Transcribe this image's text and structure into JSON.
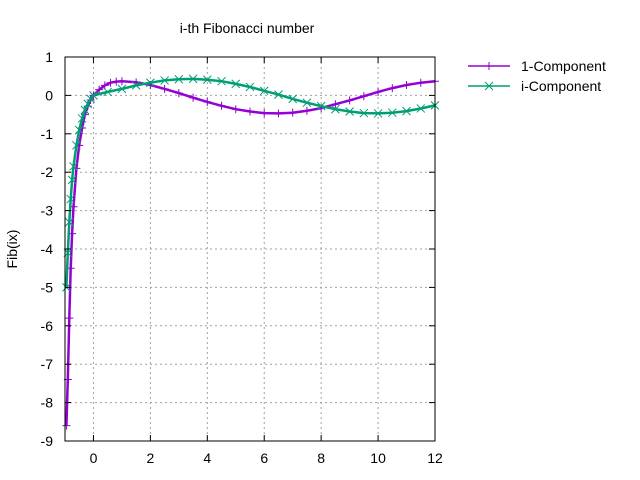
{
  "chart_data": {
    "type": "line",
    "title": "i-th Fibonacci number",
    "xlabel": "",
    "ylabel": "Fib(ix)",
    "xlim": [
      -1,
      12
    ],
    "ylim": [
      -9,
      1
    ],
    "xticks": [
      0,
      2,
      4,
      6,
      8,
      10,
      12
    ],
    "yticks": [
      1,
      0,
      -1,
      -2,
      -3,
      -4,
      -5,
      -6,
      -7,
      -8,
      -9
    ],
    "grid": true,
    "legend_position": "outside-right-top",
    "series": [
      {
        "name": "1-Component",
        "color": "#9400d3",
        "marker": "plus",
        "x": [
          -0.95,
          -0.9,
          -0.85,
          -0.8,
          -0.75,
          -0.7,
          -0.6,
          -0.5,
          -0.4,
          -0.3,
          -0.2,
          -0.1,
          0,
          0.2,
          0.4,
          0.6,
          0.8,
          1,
          1.5,
          2,
          2.5,
          3,
          3.5,
          4,
          4.5,
          5,
          5.5,
          6,
          6.5,
          7,
          7.5,
          8,
          8.5,
          9,
          9.5,
          10,
          10.5,
          11,
          11.5,
          12
        ],
        "values": [
          -8.6,
          -7.4,
          -5.8,
          -4.5,
          -3.6,
          -2.9,
          -1.9,
          -1.3,
          -0.85,
          -0.5,
          -0.28,
          -0.12,
          0,
          0.15,
          0.26,
          0.33,
          0.36,
          0.37,
          0.34,
          0.27,
          0.17,
          0.06,
          -0.06,
          -0.17,
          -0.27,
          -0.36,
          -0.42,
          -0.46,
          -0.47,
          -0.45,
          -0.4,
          -0.33,
          -0.23,
          -0.13,
          -0.02,
          0.09,
          0.19,
          0.27,
          0.33,
          0.37
        ]
      },
      {
        "name": "i-Component",
        "color": "#009e73",
        "marker": "cross",
        "x": [
          -0.95,
          -0.9,
          -0.85,
          -0.8,
          -0.75,
          -0.7,
          -0.6,
          -0.5,
          -0.4,
          -0.3,
          -0.2,
          -0.1,
          0,
          0.5,
          1,
          1.5,
          2,
          2.5,
          3,
          3.5,
          4,
          4.5,
          5,
          5.5,
          6,
          6.5,
          7,
          7.5,
          8,
          8.5,
          9,
          9.5,
          10,
          10.5,
          11,
          11.5,
          12
        ],
        "values": [
          -5.0,
          -4.1,
          -3.3,
          -2.7,
          -2.2,
          -1.85,
          -1.3,
          -0.9,
          -0.6,
          -0.38,
          -0.22,
          -0.09,
          0,
          0.09,
          0.17,
          0.26,
          0.33,
          0.39,
          0.42,
          0.43,
          0.41,
          0.37,
          0.3,
          0.22,
          0.12,
          0.02,
          -0.09,
          -0.19,
          -0.28,
          -0.36,
          -0.42,
          -0.46,
          -0.47,
          -0.45,
          -0.41,
          -0.34,
          -0.26
        ]
      }
    ]
  }
}
